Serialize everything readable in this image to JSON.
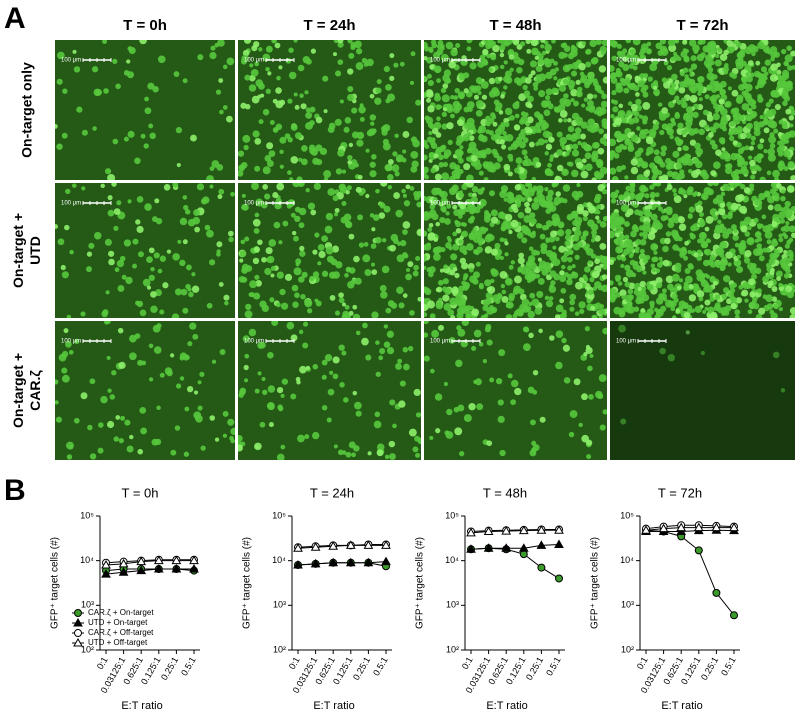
{
  "panel_a": {
    "label": "A",
    "columns": [
      "T = 0h",
      "T = 24h",
      "T = 48h",
      "T = 72h"
    ],
    "rows": [
      [
        "On-target only"
      ],
      [
        "On-target +",
        "UTD"
      ],
      [
        "On-target +",
        "CAR.ζ"
      ]
    ],
    "scale_bar": "100 μm"
  },
  "panel_b": {
    "label": "B"
  },
  "chart_data": [
    {
      "type": "line",
      "title": "T = 0h",
      "y_label": "GFP⁺ target cells (#)",
      "x_label": "E:T ratio",
      "log_y": true,
      "legend": "bottom-left",
      "categories": [
        "0:1",
        "0.03125:1",
        "0.625:1",
        "0.125:1",
        "0.25:1",
        "0.5:1"
      ],
      "ylim": [
        100,
        100000
      ],
      "yticks": [
        {
          "value": 100,
          "label": "10²"
        },
        {
          "value": 1000,
          "label": "10³"
        },
        {
          "value": 10000,
          "label": "10⁴"
        },
        {
          "value": 100000,
          "label": "10⁵"
        }
      ],
      "series": [
        {
          "name": "CAR.ζ + On-target",
          "color": "#000000",
          "fill": "#3a9a2a",
          "marker": "circle",
          "values": [
            6000,
            6500,
            6500,
            6500,
            6500,
            6000
          ]
        },
        {
          "name": "UTD + On-target",
          "color": "#000000",
          "fill": "#000000",
          "marker": "triangle",
          "values": [
            5000,
            5500,
            6000,
            6500,
            6500,
            6500
          ]
        },
        {
          "name": "CAR.ζ + Off-target",
          "color": "#000000",
          "fill": "#ffffff",
          "marker": "circle",
          "values": [
            9000,
            9500,
            10000,
            10500,
            10500,
            10500
          ]
        },
        {
          "name": "UTD + Off-target",
          "color": "#000000",
          "fill": "#ffffff",
          "marker": "triangle",
          "values": [
            8000,
            8500,
            9500,
            10000,
            10000,
            10000
          ]
        }
      ]
    },
    {
      "type": "line",
      "title": "T = 24h",
      "y_label": "GFP⁺ target cells (#)",
      "x_label": "E:T ratio",
      "log_y": true,
      "categories": [
        "0:1",
        "0.03125:1",
        "0.625:1",
        "0.125:1",
        "0.25:1",
        "0.5:1"
      ],
      "ylim": [
        100,
        100000
      ],
      "yticks": [
        {
          "value": 100,
          "label": "10²"
        },
        {
          "value": 1000,
          "label": "10³"
        },
        {
          "value": 10000,
          "label": "10⁴"
        },
        {
          "value": 100000,
          "label": "10⁵"
        }
      ],
      "series": [
        {
          "color": "#000000",
          "fill": "#3a9a2a",
          "marker": "circle",
          "values": [
            8000,
            8500,
            9000,
            9000,
            9000,
            7500
          ]
        },
        {
          "color": "#000000",
          "fill": "#000000",
          "marker": "triangle",
          "values": [
            8000,
            8500,
            9000,
            9000,
            9000,
            9500
          ]
        },
        {
          "color": "#000000",
          "fill": "#ffffff",
          "marker": "circle",
          "values": [
            20000,
            21000,
            22000,
            22000,
            23000,
            23000
          ]
        },
        {
          "color": "#000000",
          "fill": "#ffffff",
          "marker": "triangle",
          "values": [
            19000,
            20000,
            21000,
            22000,
            22000,
            22000
          ]
        }
      ]
    },
    {
      "type": "line",
      "title": "T = 48h",
      "y_label": "GFP⁺ target cells (#)",
      "x_label": "E:T ratio",
      "log_y": true,
      "categories": [
        "0:1",
        "0.03125:1",
        "0.625:1",
        "0.125:1",
        "0.25:1",
        "0.5:1"
      ],
      "ylim": [
        100,
        100000
      ],
      "yticks": [
        {
          "value": 100,
          "label": "10²"
        },
        {
          "value": 1000,
          "label": "10³"
        },
        {
          "value": 10000,
          "label": "10⁴"
        },
        {
          "value": 100000,
          "label": "10⁵"
        }
      ],
      "series": [
        {
          "color": "#000000",
          "fill": "#3a9a2a",
          "marker": "circle",
          "values": [
            18000,
            19000,
            18000,
            14000,
            7000,
            4000
          ]
        },
        {
          "color": "#000000",
          "fill": "#000000",
          "marker": "triangle",
          "values": [
            18000,
            19000,
            19000,
            19000,
            22000,
            23000
          ]
        },
        {
          "color": "#000000",
          "fill": "#ffffff",
          "marker": "circle",
          "values": [
            45000,
            47000,
            48000,
            49000,
            50000,
            50000
          ]
        },
        {
          "color": "#000000",
          "fill": "#ffffff",
          "marker": "triangle",
          "values": [
            42000,
            45000,
            46000,
            47000,
            48000,
            48000
          ]
        }
      ]
    },
    {
      "type": "line",
      "title": "T = 72h",
      "y_label": "GFP⁺ target cells (#)",
      "x_label": "E:T ratio",
      "log_y": true,
      "categories": [
        "0:1",
        "0.03125:1",
        "0.625:1",
        "0.125:1",
        "0.25:1",
        "0.5:1"
      ],
      "ylim": [
        100,
        100000
      ],
      "yticks": [
        {
          "value": 100,
          "label": "10²"
        },
        {
          "value": 1000,
          "label": "10³"
        },
        {
          "value": 10000,
          "label": "10⁴"
        },
        {
          "value": 100000,
          "label": "10⁵"
        }
      ],
      "series": [
        {
          "color": "#000000",
          "fill": "#3a9a2a",
          "marker": "circle",
          "values": [
            48000,
            45000,
            35000,
            17000,
            1900,
            600
          ]
        },
        {
          "color": "#000000",
          "fill": "#000000",
          "marker": "triangle",
          "values": [
            45000,
            45000,
            45000,
            47000,
            48000,
            47000
          ]
        },
        {
          "color": "#000000",
          "fill": "#ffffff",
          "marker": "circle",
          "values": [
            52000,
            58000,
            62000,
            62000,
            60000,
            58000
          ]
        },
        {
          "color": "#000000",
          "fill": "#ffffff",
          "marker": "triangle",
          "values": [
            48000,
            52000,
            55000,
            55000,
            55000,
            55000
          ]
        }
      ]
    }
  ]
}
